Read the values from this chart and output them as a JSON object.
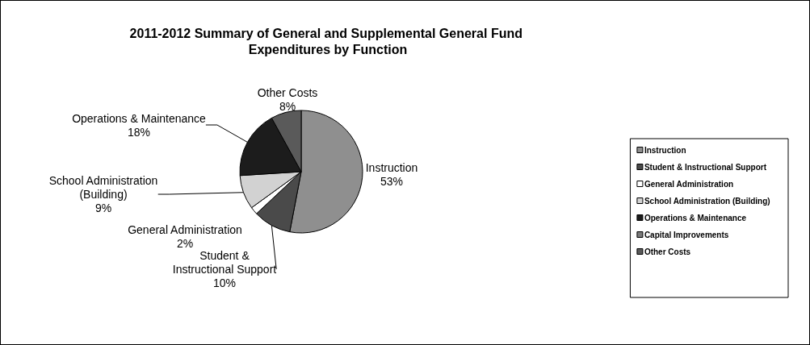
{
  "chart_data": {
    "type": "pie",
    "title": "2011-2012 Summary of General and Supplemental General Fund Expenditures by Function",
    "categories": [
      "Instruction",
      "Student & Instructional Support",
      "General Administration",
      "School Administration (Building)",
      "Operations & Maintenance",
      "Capital Improvements",
      "Other Costs"
    ],
    "values": [
      53,
      10,
      2,
      9,
      18,
      0,
      8
    ],
    "value_labels": [
      "53%",
      "10%",
      "2%",
      "9%",
      "18%",
      null,
      "8%"
    ],
    "colors": [
      "#8f8f8f",
      "#4a4a4a",
      "#ffffff",
      "#d2d2d2",
      "#1c1c1c",
      "#7a7a7a",
      "#5a5a5a"
    ],
    "legend": "right"
  }
}
